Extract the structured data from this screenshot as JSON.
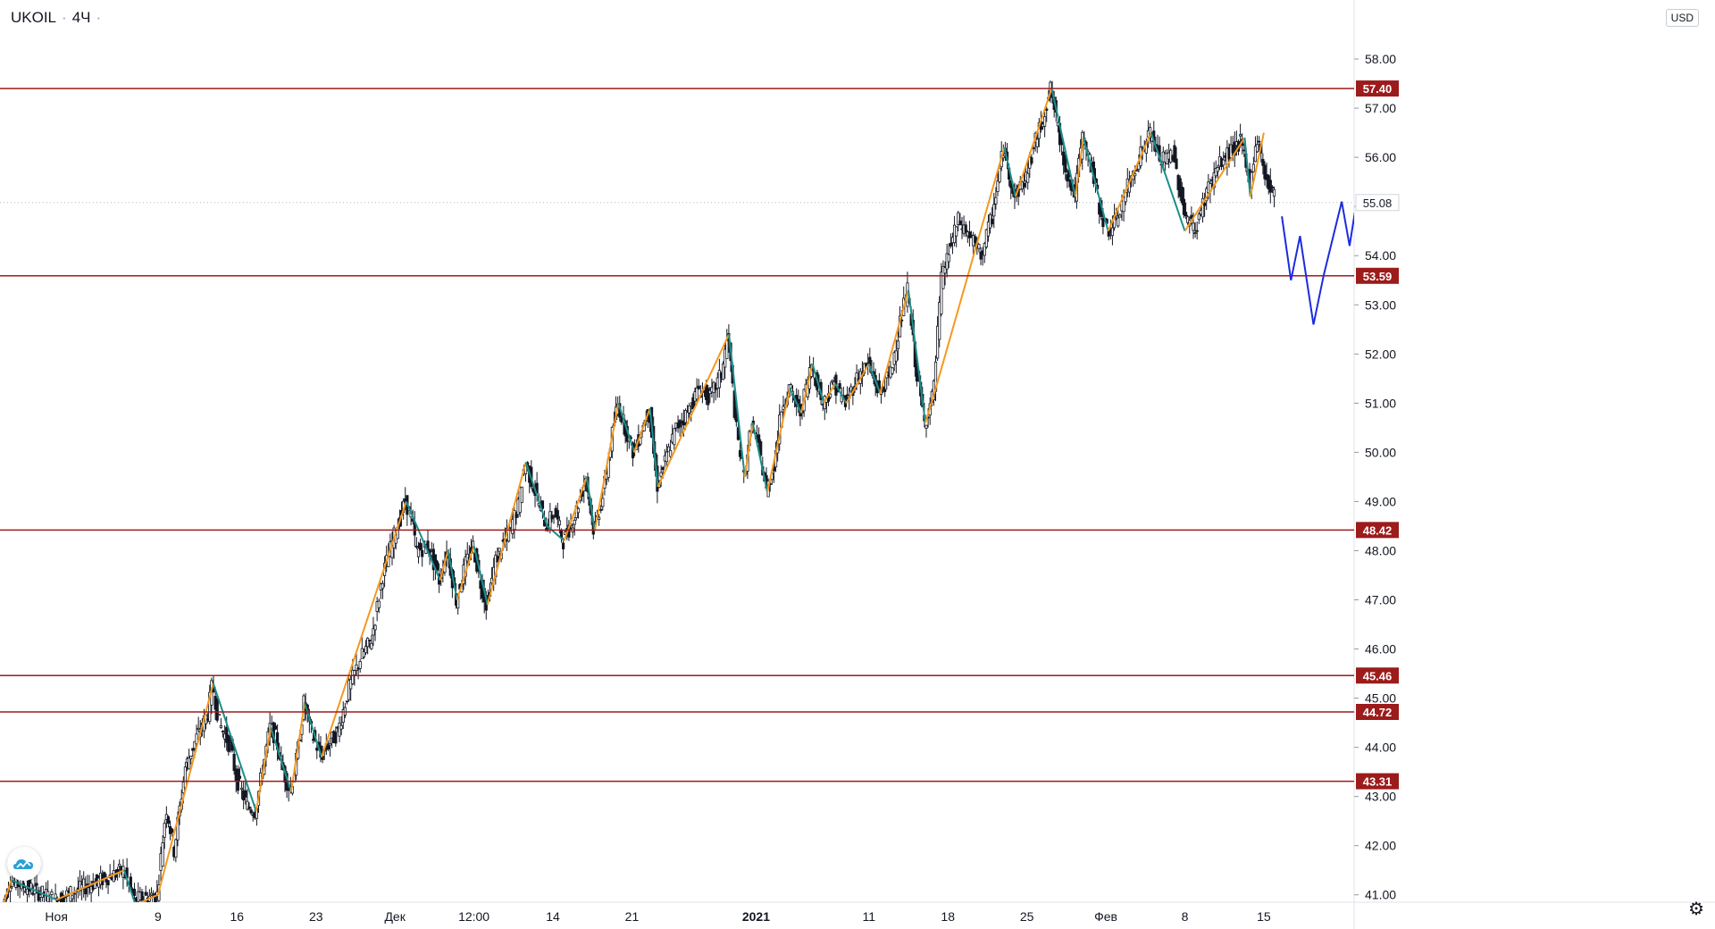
{
  "header": {
    "symbol": "UKOIL",
    "interval": "4Ч",
    "currency": "USD"
  },
  "colors": {
    "level_line": "#9c1b1b",
    "level_label_bg": "#9c1b1b",
    "zigzag_up": "#f5991e",
    "zigzag_down": "#1b8f8a",
    "forecast": "#1d2be0",
    "candle": "#131722",
    "last_price_line": "#b2b5be"
  },
  "icons": {
    "logo": "tradingview-cloud-icon",
    "settings": "gear-icon"
  },
  "chart_data": {
    "type": "candlestick",
    "title": "UKOIL · 4Ч",
    "xlabel": "",
    "ylabel": "",
    "x_tick_labels": [
      "Ноя",
      "9",
      "16",
      "23",
      "Дек",
      "12:00",
      "14",
      "21",
      "2021",
      "11",
      "18",
      "25",
      "Фев",
      "8",
      "15"
    ],
    "x_tick_days": [
      -9,
      0,
      7,
      14,
      21,
      28,
      35,
      42,
      53,
      63,
      70,
      77,
      84,
      91,
      98
    ],
    "y_tick_labels": [
      "58.00",
      "57.00",
      "56.00",
      "55.00",
      "54.00",
      "53.00",
      "52.00",
      "51.00",
      "50.00",
      "49.00",
      "48.00",
      "47.00",
      "46.00",
      "45.00",
      "44.00",
      "43.00",
      "42.00",
      "41.00"
    ],
    "y_ticks": [
      58,
      57,
      56,
      55,
      54,
      53,
      52,
      51,
      50,
      49,
      48,
      47,
      46,
      45,
      44,
      43,
      42,
      41
    ],
    "ylim": [
      40.85,
      59.2
    ],
    "xlim_days": [
      -14,
      106
    ],
    "horizontal_levels": [
      57.4,
      53.59,
      48.42,
      45.46,
      44.72,
      43.31
    ],
    "horizontal_level_labels": [
      "57.40",
      "53.59",
      "48.42",
      "45.46",
      "44.72",
      "43.31"
    ],
    "last_price": 55.08,
    "last_price_label": "55.08",
    "price_path": [
      [
        -14,
        40.6
      ],
      [
        -13,
        41.3
      ],
      [
        -9,
        40.9
      ],
      [
        -5,
        41.3
      ],
      [
        -3,
        41.5
      ],
      [
        -2,
        40.9
      ],
      [
        0,
        41.0
      ],
      [
        0.8,
        42.8
      ],
      [
        1.5,
        41.9
      ],
      [
        2.5,
        43.6
      ],
      [
        3.5,
        44.2
      ],
      [
        4.5,
        44.7
      ],
      [
        4.9,
        45.3
      ],
      [
        5.5,
        44.5
      ],
      [
        6.5,
        44.0
      ],
      [
        7.0,
        43.4
      ],
      [
        8.0,
        42.8
      ],
      [
        8.7,
        42.7
      ],
      [
        9.3,
        43.5
      ],
      [
        10.0,
        44.4
      ],
      [
        10.5,
        44.2
      ],
      [
        11.2,
        43.5
      ],
      [
        11.8,
        43.1
      ],
      [
        12.4,
        43.8
      ],
      [
        13.0,
        44.9
      ],
      [
        13.7,
        44.3
      ],
      [
        14.5,
        43.8
      ],
      [
        15.3,
        44.1
      ],
      [
        16.0,
        44.3
      ],
      [
        17.0,
        45.2
      ],
      [
        18.0,
        45.8
      ],
      [
        19.0,
        46.2
      ],
      [
        20.0,
        47.5
      ],
      [
        21.0,
        48.3
      ],
      [
        22.0,
        49.0
      ],
      [
        22.5,
        48.7
      ],
      [
        23.0,
        48.0
      ],
      [
        24.0,
        48.1
      ],
      [
        25.0,
        47.4
      ],
      [
        25.7,
        48.0
      ],
      [
        26.5,
        47.0
      ],
      [
        27.3,
        47.7
      ],
      [
        28.0,
        48.1
      ],
      [
        28.6,
        47.4
      ],
      [
        29.2,
        46.9
      ],
      [
        30.0,
        47.8
      ],
      [
        31.0,
        48.3
      ],
      [
        32.0,
        48.9
      ],
      [
        32.6,
        49.8
      ],
      [
        33.5,
        49.2
      ],
      [
        34.5,
        48.5
      ],
      [
        35.2,
        48.8
      ],
      [
        36.0,
        48.2
      ],
      [
        37.0,
        48.7
      ],
      [
        38.0,
        49.5
      ],
      [
        38.7,
        48.4
      ],
      [
        39.5,
        49.1
      ],
      [
        40.2,
        50.2
      ],
      [
        40.8,
        51.0
      ],
      [
        41.5,
        50.5
      ],
      [
        42.2,
        50.0
      ],
      [
        43.0,
        50.5
      ],
      [
        43.6,
        50.9
      ],
      [
        44.3,
        49.3
      ],
      [
        45.0,
        49.8
      ],
      [
        46.0,
        50.5
      ],
      [
        47.0,
        50.8
      ],
      [
        48.0,
        51.3
      ],
      [
        49.0,
        51.1
      ],
      [
        50.0,
        51.6
      ],
      [
        50.6,
        52.4
      ],
      [
        51.3,
        50.5
      ],
      [
        52.0,
        49.5
      ],
      [
        52.7,
        50.6
      ],
      [
        53.4,
        50.0
      ],
      [
        54.0,
        49.2
      ],
      [
        54.7,
        49.8
      ],
      [
        55.4,
        51.0
      ],
      [
        56.0,
        51.3
      ],
      [
        57.0,
        50.8
      ],
      [
        58.0,
        51.8
      ],
      [
        59.0,
        51.0
      ],
      [
        60.0,
        51.4
      ],
      [
        61.0,
        51.0
      ],
      [
        62.0,
        51.5
      ],
      [
        63.0,
        51.8
      ],
      [
        64.0,
        51.2
      ],
      [
        65.0,
        51.6
      ],
      [
        65.8,
        52.6
      ],
      [
        66.5,
        53.3
      ],
      [
        67.2,
        51.8
      ],
      [
        68.0,
        50.6
      ],
      [
        68.8,
        51.2
      ],
      [
        69.5,
        53.5
      ],
      [
        70.3,
        54.2
      ],
      [
        71.0,
        54.7
      ],
      [
        72.0,
        54.4
      ],
      [
        73.0,
        54.0
      ],
      [
        74.0,
        54.8
      ],
      [
        75.0,
        56.2
      ],
      [
        76.0,
        55.2
      ],
      [
        77.0,
        55.6
      ],
      [
        77.8,
        56.3
      ],
      [
        78.5,
        56.8
      ],
      [
        79.2,
        57.4
      ],
      [
        79.8,
        56.6
      ],
      [
        80.5,
        55.8
      ],
      [
        81.3,
        55.2
      ],
      [
        82.0,
        56.4
      ],
      [
        82.7,
        55.9
      ],
      [
        83.5,
        55.0
      ],
      [
        84.2,
        54.5
      ],
      [
        85.0,
        54.7
      ],
      [
        86.0,
        55.4
      ],
      [
        87.0,
        56.0
      ],
      [
        88.0,
        56.5
      ],
      [
        89.0,
        55.9
      ],
      [
        90.0,
        56.1
      ],
      [
        91.0,
        54.9
      ],
      [
        92.0,
        54.5
      ],
      [
        93.0,
        55.3
      ],
      [
        94.0,
        55.8
      ],
      [
        95.0,
        56.1
      ],
      [
        96.0,
        56.3
      ],
      [
        96.8,
        55.5
      ],
      [
        97.5,
        56.4
      ],
      [
        98.2,
        55.6
      ],
      [
        99.0,
        55.2
      ]
    ],
    "zigzag_pivots": [
      [
        -14,
        40.6
      ],
      [
        -13,
        41.3
      ],
      [
        -9,
        40.9
      ],
      [
        -5,
        41.3
      ],
      [
        -3,
        41.5
      ],
      [
        -2,
        40.8
      ],
      [
        0,
        41.0
      ],
      [
        4.9,
        45.3
      ],
      [
        8.7,
        42.7
      ],
      [
        10.0,
        44.4
      ],
      [
        11.8,
        43.1
      ],
      [
        13.0,
        44.9
      ],
      [
        14.5,
        43.8
      ],
      [
        22.0,
        49.0
      ],
      [
        25.0,
        47.4
      ],
      [
        25.7,
        48.0
      ],
      [
        26.5,
        47.0
      ],
      [
        28.0,
        48.1
      ],
      [
        29.2,
        46.9
      ],
      [
        32.6,
        49.8
      ],
      [
        34.5,
        48.5
      ],
      [
        36.0,
        48.2
      ],
      [
        38.0,
        49.5
      ],
      [
        38.7,
        48.4
      ],
      [
        40.8,
        51.0
      ],
      [
        42.2,
        50.0
      ],
      [
        43.6,
        50.9
      ],
      [
        44.3,
        49.3
      ],
      [
        50.6,
        52.4
      ],
      [
        52.0,
        49.5
      ],
      [
        52.7,
        50.6
      ],
      [
        54.0,
        49.2
      ],
      [
        56.0,
        51.3
      ],
      [
        57.0,
        50.8
      ],
      [
        58.0,
        51.8
      ],
      [
        59.0,
        51.0
      ],
      [
        60.0,
        51.4
      ],
      [
        61.0,
        51.0
      ],
      [
        63.0,
        51.8
      ],
      [
        64.0,
        51.2
      ],
      [
        66.5,
        53.3
      ],
      [
        68.0,
        50.6
      ],
      [
        68.8,
        51.2
      ],
      [
        75.0,
        56.2
      ],
      [
        76.0,
        55.2
      ],
      [
        79.2,
        57.4
      ],
      [
        81.3,
        55.2
      ],
      [
        82.0,
        56.4
      ],
      [
        84.2,
        54.5
      ],
      [
        88.0,
        56.5
      ],
      [
        91.0,
        54.5
      ],
      [
        96.3,
        56.4
      ],
      [
        96.8,
        55.2
      ],
      [
        98.0,
        56.5
      ]
    ],
    "forecast_path": [
      [
        99.6,
        54.8
      ],
      [
        100.4,
        53.5
      ],
      [
        101.2,
        54.4
      ],
      [
        102.4,
        52.6
      ],
      [
        103.3,
        53.6
      ],
      [
        104.9,
        55.1
      ],
      [
        105.6,
        54.2
      ],
      [
        107.8,
        57.4
      ]
    ]
  }
}
